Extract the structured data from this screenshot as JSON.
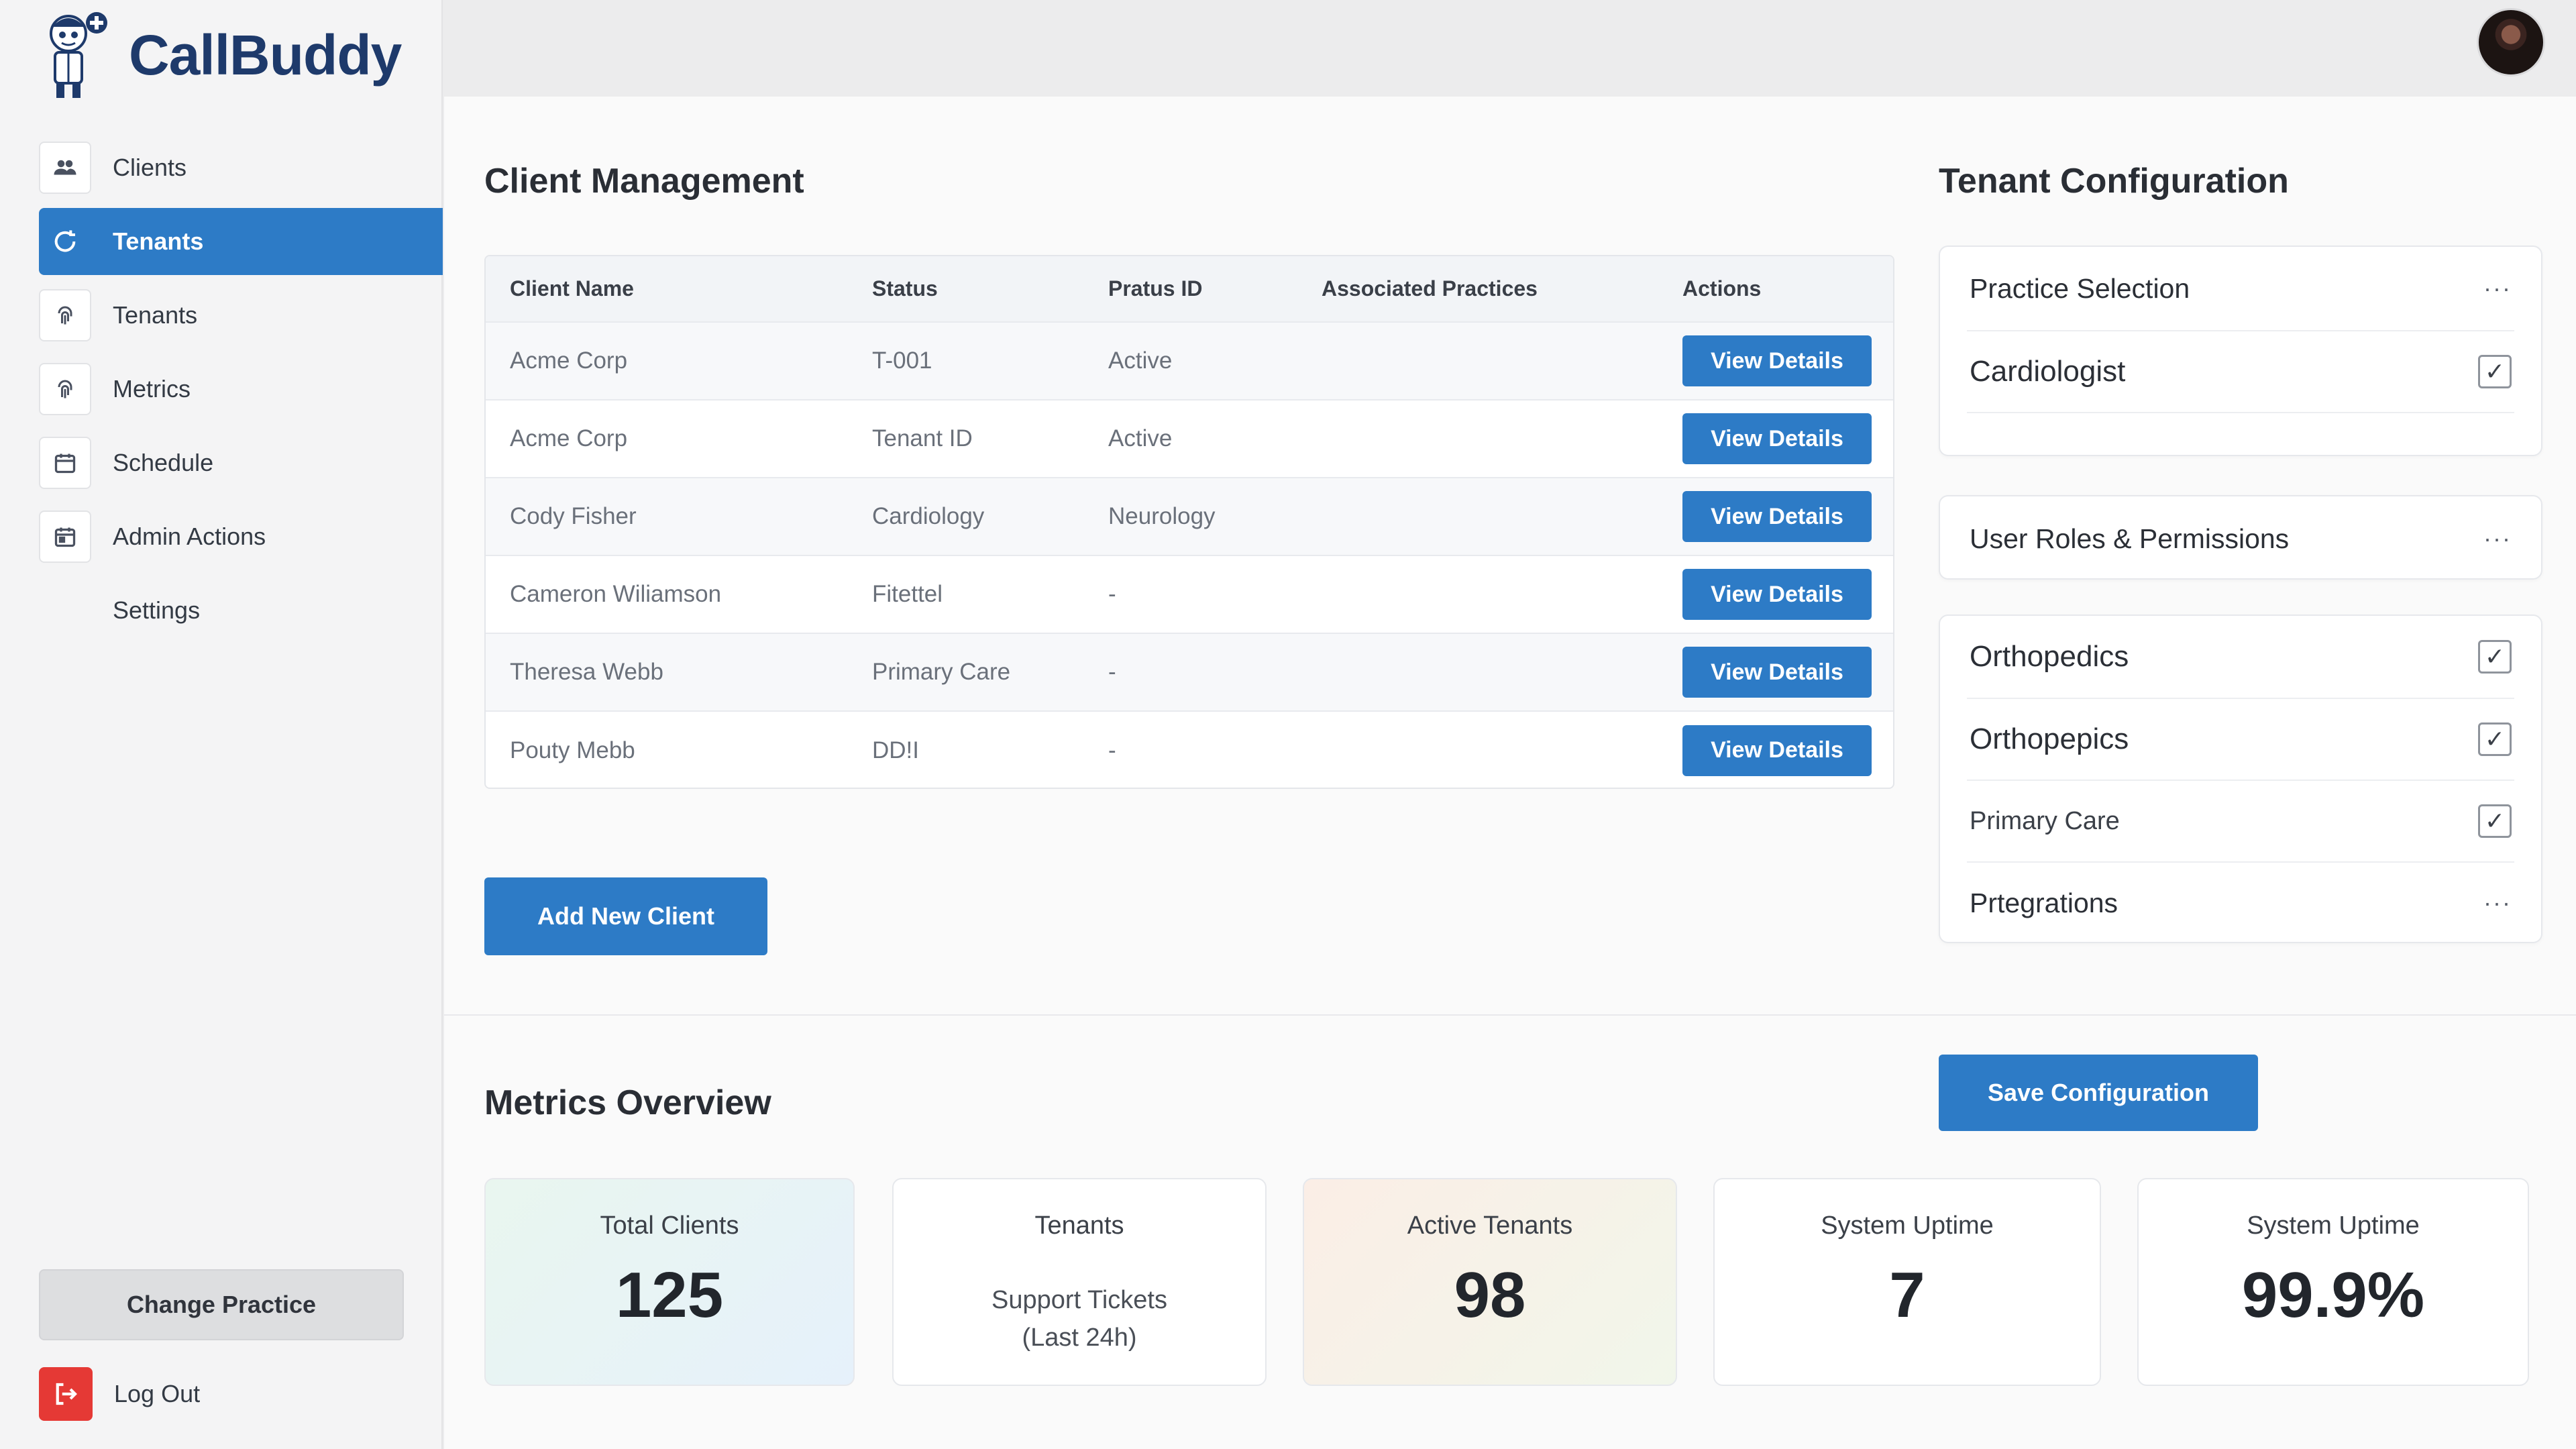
{
  "app": {
    "name": "CallBuddy"
  },
  "sidebar": {
    "items": [
      {
        "label": "Clients",
        "icon": "users-icon"
      },
      {
        "label": "Tenants",
        "icon": "refresh-icon",
        "active": true
      },
      {
        "label": "Tenants",
        "icon": "fingerprint-icon"
      },
      {
        "label": "Metrics",
        "icon": "fingerprint-icon"
      },
      {
        "label": "Schedule",
        "icon": "calendar-icon"
      },
      {
        "label": "Admin Actions",
        "icon": "calendar-icon"
      },
      {
        "label": "Settings",
        "icon": ""
      }
    ],
    "change_practice": "Change Practice",
    "logout": "Log Out"
  },
  "client_management": {
    "title": "Client Management",
    "columns": [
      "Client Name",
      "Status",
      "Pratus ID",
      "Associated Practices",
      "Actions"
    ],
    "rows": [
      {
        "name": "Acme Corp",
        "status": "T-001",
        "pratus_id": "Active",
        "associated": "",
        "action": "View Details"
      },
      {
        "name": "Acme Corp",
        "status": "Tenant ID",
        "pratus_id": "Active",
        "associated": "",
        "action": "View Details"
      },
      {
        "name": "Cody Fisher",
        "status": "Cardiology",
        "pratus_id": "Neurology",
        "associated": "",
        "action": "View Details"
      },
      {
        "name": "Cameron Wiliamson",
        "status": "Fitettel",
        "pratus_id": "-",
        "associated": "",
        "action": "View Details"
      },
      {
        "name": "Theresa Webb",
        "status": "Primary Care",
        "pratus_id": "-",
        "associated": "",
        "action": "View Details"
      },
      {
        "name": "Pouty Mebb",
        "status": "DD!I",
        "pratus_id": "-",
        "associated": "",
        "action": "View Details"
      }
    ],
    "add_button": "Add New Client"
  },
  "tenant_configuration": {
    "title": "Tenant Configuration",
    "practice_selection": {
      "label": "Practice Selection",
      "selected": "Cardiologist",
      "checked": true
    },
    "user_roles": {
      "label": "User Roles & Permissions"
    },
    "practices": [
      {
        "label": "Orthopedics",
        "checked": true
      },
      {
        "label": "Orthopepics",
        "checked": true
      },
      {
        "label": "Primary Care",
        "checked": true
      }
    ],
    "integrations": {
      "label": "Prtegrations"
    },
    "save_button": "Save Configuration",
    "check_glyph": "✓",
    "more_glyph": "···"
  },
  "metrics": {
    "title": "Metrics Overview",
    "cards": [
      {
        "title": "Total Clients",
        "value": "125"
      },
      {
        "title": "Tenants",
        "subtitle_line1": "Support Tickets",
        "subtitle_line2": "(Last 24h)"
      },
      {
        "title": "Active Tenants",
        "value": "98"
      },
      {
        "title": "System Uptime",
        "value": "7"
      },
      {
        "title": "System Uptime",
        "value": "99.9%"
      }
    ]
  },
  "colors": {
    "primary": "#2d7bc6",
    "logout": "#e53935",
    "brand_text": "#1e3a6b"
  }
}
